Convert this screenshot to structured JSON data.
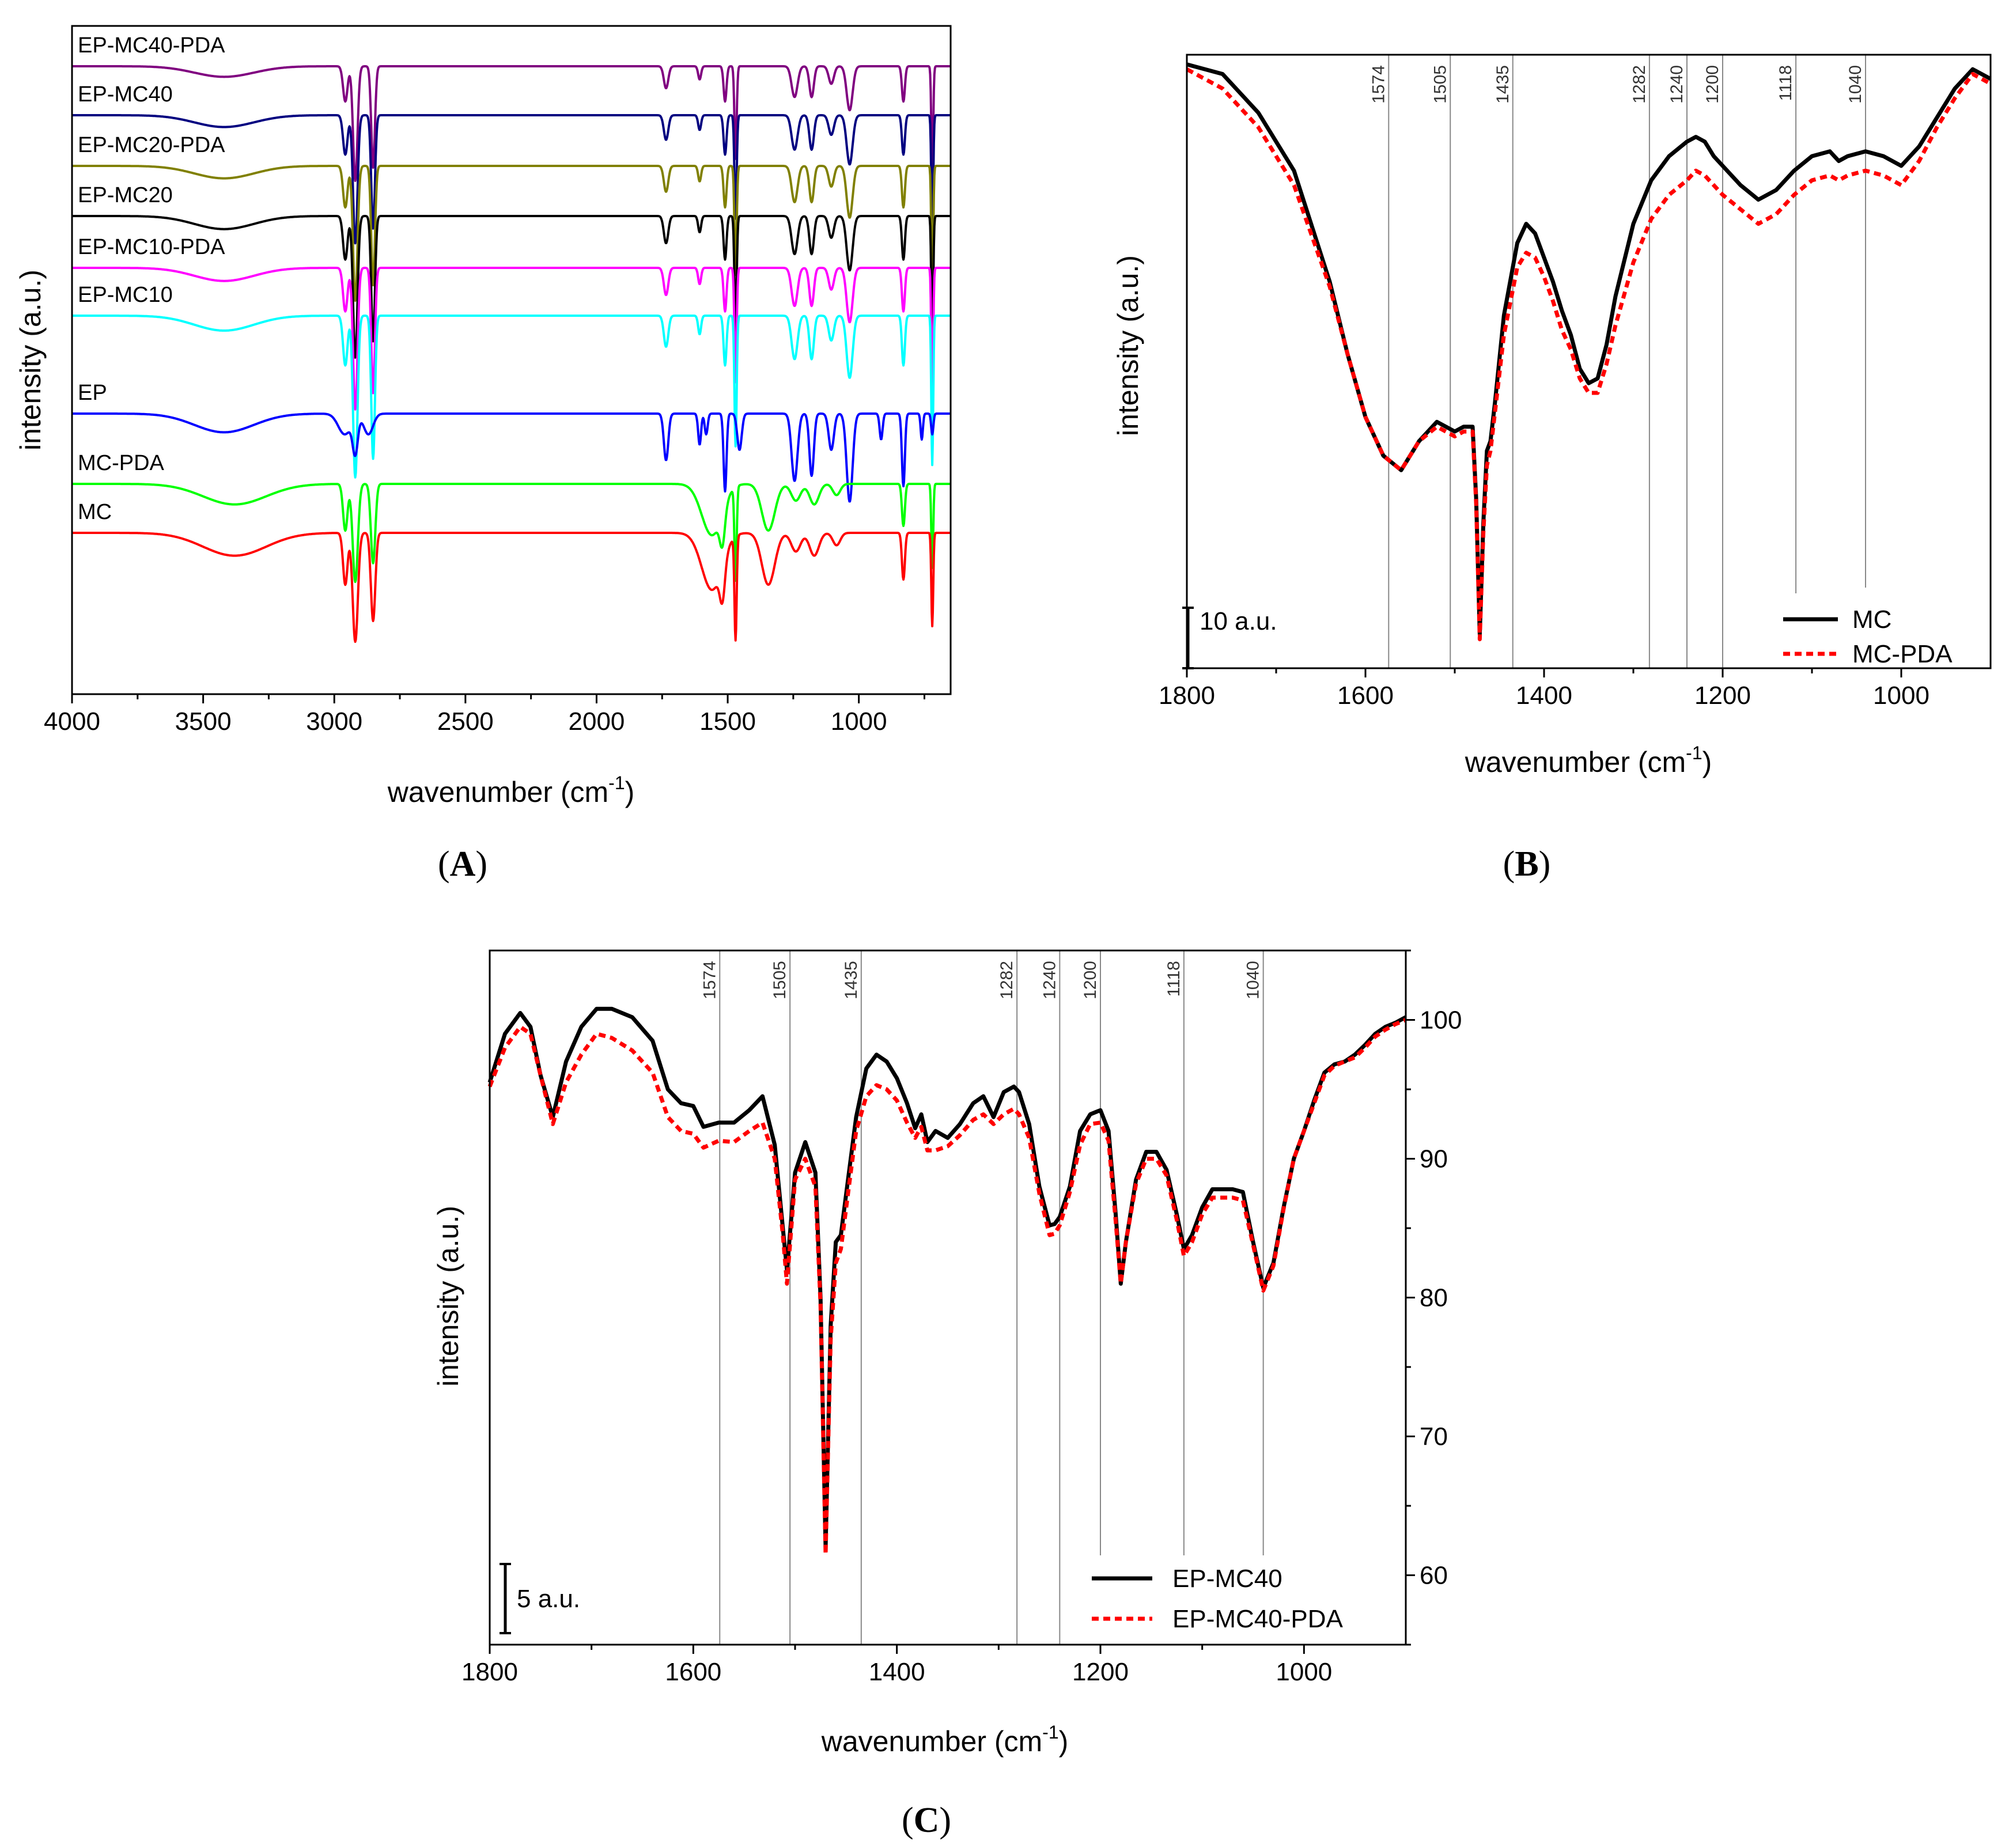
{
  "chart_data": [
    {
      "id": "A",
      "panel_label": "(A)",
      "type": "line",
      "title": "",
      "xlabel": "wavenumber (cm",
      "xlabel_sup": "-1",
      "xlabel_tail": ")",
      "ylabel": "intensity (a.u.)",
      "xlim": [
        4000,
        650
      ],
      "x_ticks": [
        "4000",
        "3500",
        "3000",
        "2500",
        "2000",
        "1500",
        "1000"
      ],
      "x_tick_values": [
        4000,
        3500,
        3000,
        2500,
        2000,
        1500,
        1000
      ],
      "grid": false,
      "series": [
        {
          "name": "EP-MC40-PDA",
          "color": "#800080",
          "offset": 0,
          "profile": "MIX",
          "scale": 0.85
        },
        {
          "name": "EP-MC40",
          "color": "#000080",
          "offset": 1,
          "profile": "MIX",
          "scale": 0.95
        },
        {
          "name": "EP-MC20-PDA",
          "color": "#808000",
          "offset": 2,
          "profile": "MIX",
          "scale": 1.0
        },
        {
          "name": "EP-MC20",
          "color": "#000000",
          "offset": 3,
          "profile": "MIX",
          "scale": 1.05
        },
        {
          "name": "EP-MC10-PDA",
          "color": "#ff00ff",
          "offset": 4,
          "profile": "MIX",
          "scale": 1.05
        },
        {
          "name": "EP-MC10",
          "color": "#00ffff",
          "offset": 5,
          "profile": "MIX",
          "scale": 1.2
        },
        {
          "name": "EP",
          "color": "#0000ff",
          "offset": 6,
          "profile": "EP",
          "scale": 1.0
        },
        {
          "name": "MC-PDA",
          "color": "#00ff00",
          "offset": 7,
          "profile": "MC",
          "scale": 0.9
        },
        {
          "name": "MC",
          "color": "#ff0000",
          "offset": 8,
          "profile": "MC",
          "scale": 1.0
        }
      ]
    },
    {
      "id": "B",
      "panel_label": "(B)",
      "type": "line",
      "xlabel": "wavenumber (cm",
      "xlabel_sup": "-1",
      "xlabel_tail": ")",
      "ylabel": "intensity (a.u.)",
      "xlim": [
        1800,
        900
      ],
      "x_ticks": [
        "1800",
        "1600",
        "1400",
        "1200",
        "1000"
      ],
      "x_tick_values": [
        1800,
        1600,
        1400,
        1200,
        1000
      ],
      "scale_bar_label": "10 a.u.",
      "scale_bar_value": 10,
      "reference_lines": [
        "1574",
        "1505",
        "1435",
        "1282",
        "1240",
        "1200",
        "1118",
        "1040"
      ],
      "reference_values": [
        1574,
        1505,
        1435,
        1282,
        1240,
        1200,
        1118,
        1040
      ],
      "legend": [
        "MC",
        "MC-PDA"
      ],
      "legend_position": "bottom-right",
      "series": [
        {
          "name": "MC",
          "color": "#000000",
          "style": "solid",
          "x": [
            1800,
            1760,
            1720,
            1680,
            1640,
            1620,
            1600,
            1580,
            1560,
            1540,
            1520,
            1500,
            1490,
            1480,
            1476,
            1472,
            1468,
            1464,
            1460,
            1455,
            1445,
            1430,
            1420,
            1410,
            1400,
            1390,
            1380,
            1370,
            1360,
            1350,
            1340,
            1330,
            1320,
            1300,
            1280,
            1260,
            1240,
            1230,
            1220,
            1210,
            1200,
            1180,
            1160,
            1140,
            1130,
            1120,
            1100,
            1080,
            1070,
            1060,
            1040,
            1020,
            1000,
            980,
            960,
            940,
            920,
            900
          ],
          "y": [
            100,
            98,
            90,
            78,
            55,
            40,
            27,
            19,
            16,
            22,
            26,
            24,
            25,
            25,
            10,
            -18,
            5,
            20,
            22,
            30,
            48,
            63,
            67,
            65,
            60,
            55,
            49,
            44,
            37,
            34,
            35,
            42,
            52,
            67,
            76,
            81,
            84,
            85,
            84,
            81,
            79,
            75,
            72,
            74,
            76,
            78,
            81,
            82,
            80,
            81,
            82,
            81,
            79,
            83,
            89,
            95,
            99,
            97
          ]
        },
        {
          "name": "MC-PDA",
          "color": "#ff0000",
          "style": "dashed",
          "x": [
            1800,
            1760,
            1720,
            1680,
            1640,
            1620,
            1600,
            1580,
            1560,
            1540,
            1520,
            1500,
            1490,
            1480,
            1476,
            1472,
            1468,
            1464,
            1460,
            1455,
            1445,
            1430,
            1420,
            1410,
            1400,
            1390,
            1380,
            1370,
            1360,
            1350,
            1340,
            1330,
            1320,
            1300,
            1280,
            1260,
            1240,
            1230,
            1220,
            1210,
            1200,
            1180,
            1160,
            1140,
            1130,
            1120,
            1100,
            1080,
            1070,
            1060,
            1040,
            1020,
            1000,
            980,
            960,
            940,
            920,
            900
          ],
          "y": [
            99,
            95,
            87,
            75,
            54,
            40,
            27,
            19,
            16,
            22,
            25,
            23,
            24,
            24,
            9,
            -19,
            3,
            17,
            20,
            28,
            44,
            58,
            61,
            60,
            56,
            51,
            45,
            41,
            35,
            32,
            32,
            38,
            46,
            59,
            68,
            73,
            76,
            78,
            77,
            75,
            73,
            70,
            67,
            69,
            71,
            73,
            76,
            77,
            76,
            77,
            78,
            77,
            75,
            80,
            87,
            93,
            98,
            96
          ]
        }
      ]
    },
    {
      "id": "C",
      "panel_label": "(C)",
      "type": "line",
      "xlabel": "wavenumber (cm",
      "xlabel_sup": "-1",
      "xlabel_tail": ")",
      "ylabel": "intensity (a.u.)",
      "xlim": [
        1800,
        900
      ],
      "ylim": [
        55,
        105
      ],
      "x_ticks": [
        "1800",
        "1600",
        "1400",
        "1200",
        "1000"
      ],
      "x_tick_values": [
        1800,
        1600,
        1400,
        1200,
        1000
      ],
      "y_ticks": [
        "60",
        "70",
        "80",
        "90",
        "100"
      ],
      "y_tick_values": [
        60,
        70,
        80,
        90,
        100
      ],
      "y_axis_side": "right",
      "scale_bar_label": "5 a.u.",
      "scale_bar_value": 5,
      "reference_lines": [
        "1574",
        "1505",
        "1435",
        "1282",
        "1240",
        "1200",
        "1118",
        "1040"
      ],
      "reference_values": [
        1574,
        1505,
        1435,
        1282,
        1240,
        1200,
        1118,
        1040
      ],
      "legend": [
        "EP-MC40",
        "EP-MC40-PDA"
      ],
      "legend_position": "bottom-right",
      "series": [
        {
          "name": "EP-MC40",
          "color": "#000000",
          "style": "solid",
          "x": [
            1800,
            1785,
            1770,
            1760,
            1750,
            1738,
            1725,
            1710,
            1695,
            1680,
            1660,
            1640,
            1625,
            1612,
            1600,
            1590,
            1575,
            1560,
            1545,
            1532,
            1520,
            1512,
            1508,
            1500,
            1490,
            1480,
            1475,
            1470,
            1465,
            1460,
            1455,
            1448,
            1440,
            1430,
            1420,
            1410,
            1400,
            1390,
            1382,
            1376,
            1370,
            1362,
            1350,
            1338,
            1325,
            1315,
            1305,
            1295,
            1285,
            1280,
            1270,
            1260,
            1250,
            1245,
            1240,
            1230,
            1220,
            1210,
            1200,
            1192,
            1185,
            1180,
            1175,
            1165,
            1155,
            1145,
            1135,
            1125,
            1118,
            1110,
            1100,
            1090,
            1080,
            1070,
            1060,
            1050,
            1040,
            1030,
            1020,
            1010,
            1000,
            990,
            980,
            970,
            960,
            950,
            940,
            930,
            920,
            910,
            900
          ],
          "y": [
            95.5,
            99,
            100.5,
            99.5,
            96,
            93,
            97,
            99.5,
            100.8,
            100.8,
            100.2,
            98.5,
            95,
            94,
            93.8,
            92.3,
            92.6,
            92.6,
            93.5,
            94.5,
            91,
            85,
            82,
            89,
            91.2,
            89,
            80,
            62,
            78,
            84,
            84.5,
            88.5,
            93,
            96.5,
            97.5,
            97,
            95.8,
            94,
            92.2,
            93.2,
            91.2,
            92,
            91.5,
            92.5,
            94,
            94.5,
            93,
            94.8,
            95.2,
            94.8,
            92.5,
            88,
            85.2,
            85.3,
            85.8,
            88,
            92,
            93.2,
            93.5,
            92,
            86,
            81,
            84,
            88.5,
            90.5,
            90.5,
            89.2,
            86,
            83.5,
            84.5,
            86.5,
            87.8,
            87.8,
            87.8,
            87.6,
            84,
            80.7,
            82.5,
            86.5,
            90,
            92,
            94.2,
            96.2,
            96.8,
            97,
            97.5,
            98.2,
            99,
            99.5,
            99.8,
            100.2
          ]
        },
        {
          "name": "EP-MC40-PDA",
          "color": "#ff0000",
          "style": "dashed",
          "x": [
            1800,
            1785,
            1770,
            1760,
            1750,
            1738,
            1725,
            1710,
            1695,
            1680,
            1660,
            1640,
            1625,
            1612,
            1600,
            1590,
            1575,
            1560,
            1545,
            1532,
            1520,
            1512,
            1508,
            1500,
            1490,
            1480,
            1475,
            1470,
            1465,
            1460,
            1455,
            1448,
            1440,
            1430,
            1420,
            1410,
            1400,
            1390,
            1382,
            1376,
            1370,
            1362,
            1350,
            1338,
            1325,
            1315,
            1305,
            1295,
            1285,
            1280,
            1270,
            1260,
            1250,
            1245,
            1240,
            1230,
            1220,
            1210,
            1200,
            1192,
            1185,
            1180,
            1175,
            1165,
            1155,
            1145,
            1135,
            1125,
            1118,
            1110,
            1100,
            1090,
            1080,
            1070,
            1060,
            1050,
            1040,
            1030,
            1020,
            1010,
            1000,
            990,
            980,
            970,
            960,
            950,
            940,
            930,
            920,
            910,
            900
          ],
          "y": [
            95.2,
            98,
            99.5,
            99,
            96,
            92.5,
            95.5,
            97.5,
            99,
            98.7,
            97.8,
            96.2,
            93,
            92,
            91.8,
            90.8,
            91.3,
            91.2,
            92,
            92.6,
            90,
            84.5,
            81,
            88.5,
            90,
            88,
            79.5,
            61.5,
            77,
            82.5,
            83.5,
            87.5,
            92,
            94.5,
            95.3,
            95,
            94.2,
            92.6,
            91.5,
            92.3,
            90.6,
            90.6,
            90.9,
            91.7,
            92.8,
            93.2,
            92.5,
            93.2,
            93.6,
            93.2,
            91.5,
            87.5,
            84.5,
            84.6,
            85.2,
            87.6,
            91,
            92.5,
            92.6,
            91.3,
            85.5,
            81,
            84,
            88.2,
            90,
            90,
            88.8,
            85.6,
            83,
            84,
            86,
            87.2,
            87.2,
            87.2,
            87,
            83.8,
            80.5,
            82.3,
            86.4,
            90,
            92,
            94,
            96,
            96.7,
            97,
            97.3,
            98,
            98.8,
            99.3,
            99.7,
            100
          ]
        }
      ]
    }
  ]
}
